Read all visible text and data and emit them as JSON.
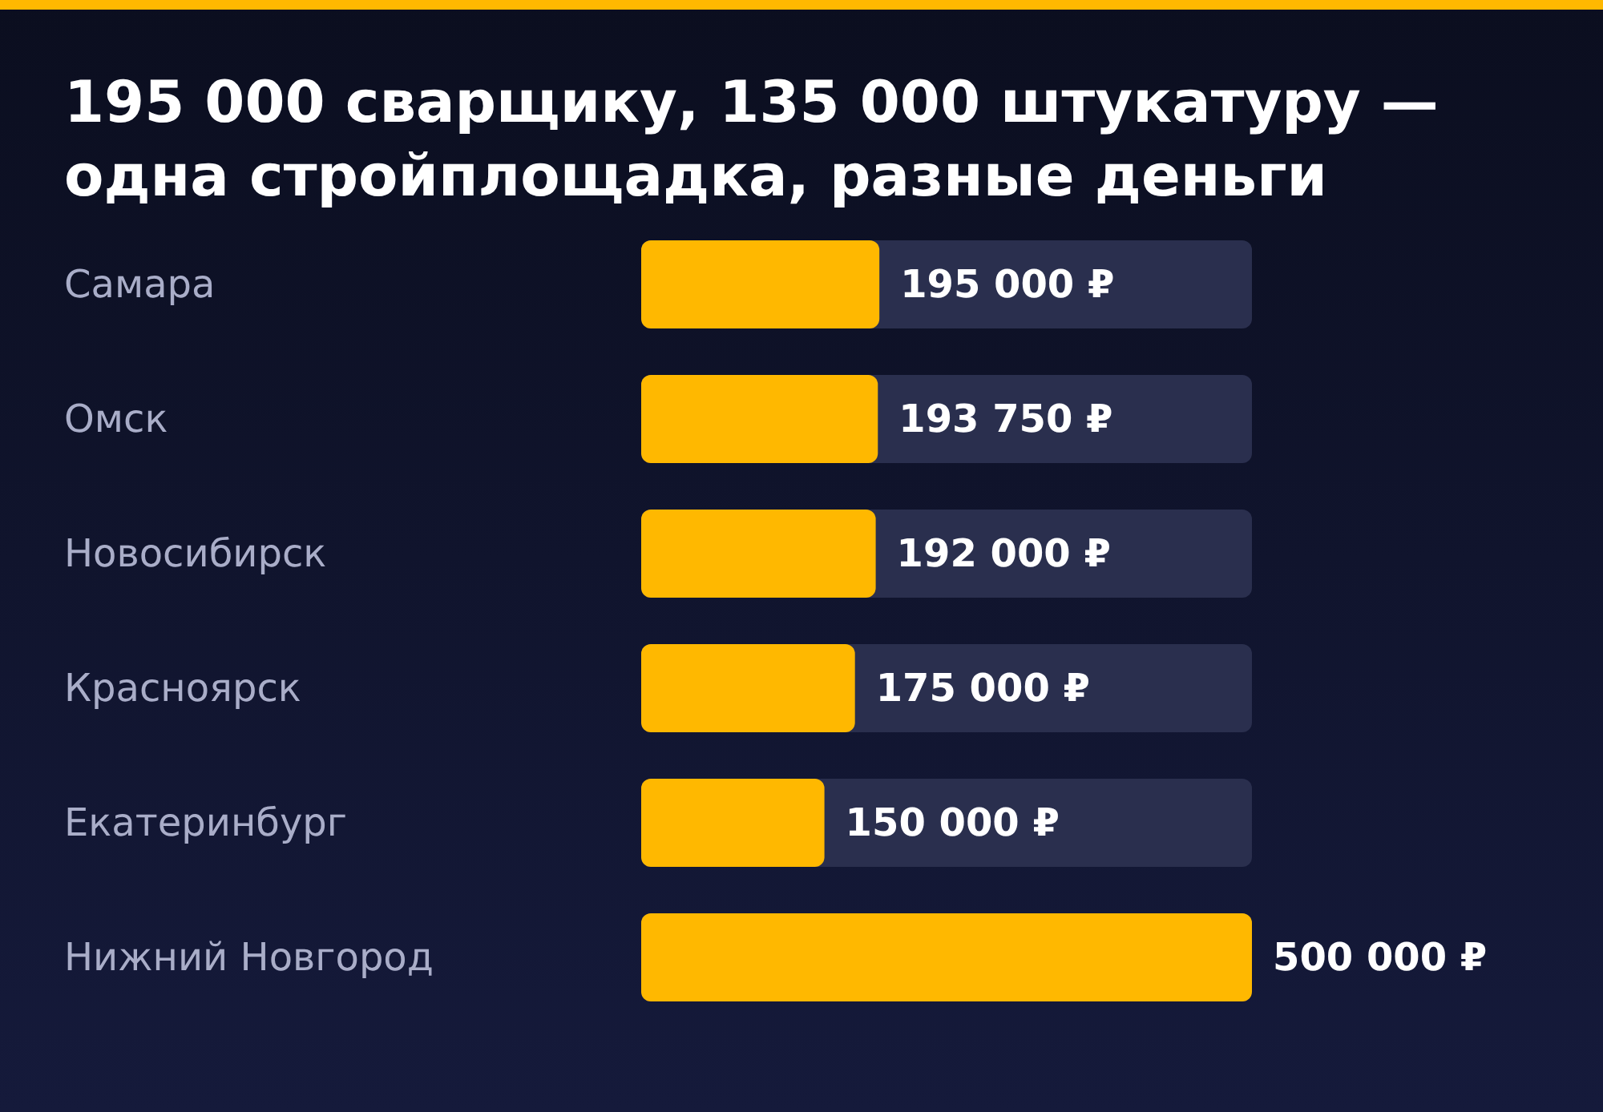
{
  "chart_data": {
    "type": "bar",
    "orientation": "horizontal",
    "title": "195 000 сварщику, 135 000 штукатуру — одна стройплощадка, разные деньги",
    "categories": [
      "Самара",
      "Омск",
      "Новосибирск",
      "Красноярск",
      "Екатеринбург",
      "Нижний Новгород"
    ],
    "values": [
      195000,
      193750,
      192000,
      175000,
      150000,
      500000
    ],
    "value_labels": [
      "195 000 ₽",
      "193 750 ₽",
      "192 000 ₽",
      "175 000 ₽",
      "150 000 ₽",
      "500 000 ₽"
    ],
    "color": "#ffb800"
  }
}
